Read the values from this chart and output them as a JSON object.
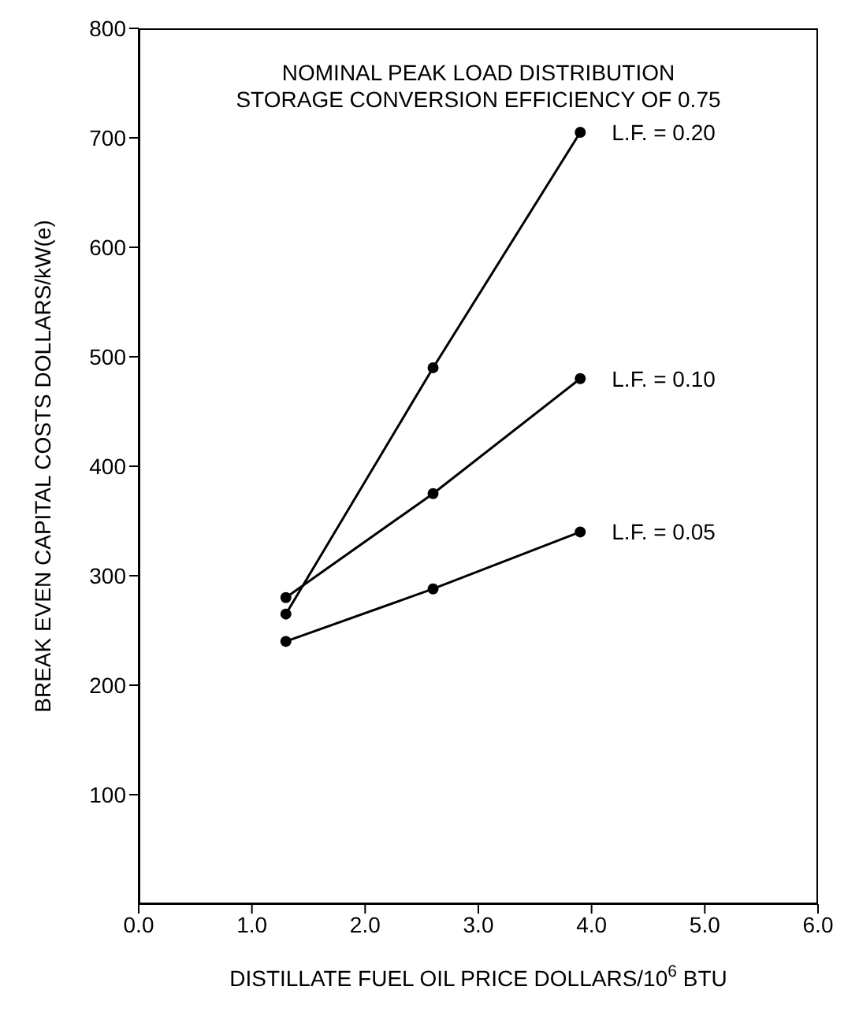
{
  "chart_data": {
    "type": "line",
    "title": "NOMINAL PEAK LOAD DISTRIBUTION",
    "subtitle": "STORAGE CONVERSION EFFICIENCY OF 0.75",
    "xlabel": "DISTILLATE FUEL OIL PRICE DOLLARS/10$^{6}$ BTU",
    "ylabel": "BREAK EVEN CAPITAL COSTS DOLLARS/kW(e)",
    "x": [
      1.3,
      2.6,
      3.9
    ],
    "series": [
      {
        "name": "L.F. = 0.20",
        "color": "#000000",
        "values": [
          265,
          490,
          705
        ]
      },
      {
        "name": "L.F. = 0.10",
        "color": "#000000",
        "values": [
          280,
          375,
          480
        ]
      },
      {
        "name": "L.F. = 0.05",
        "color": "#000000",
        "values": [
          240,
          288,
          340
        ]
      }
    ],
    "xlim": [
      0,
      6
    ],
    "xticks": [
      {
        "value": 0,
        "label": "0.0"
      },
      {
        "value": 1,
        "label": "1.0"
      },
      {
        "value": 2,
        "label": "2.0"
      },
      {
        "value": 3,
        "label": "3.0"
      },
      {
        "value": 4,
        "label": "4.0"
      },
      {
        "value": 5,
        "label": "5.0"
      },
      {
        "value": 6,
        "label": "6.0"
      }
    ],
    "ylim": [
      0,
      800
    ],
    "yticks": [
      100,
      200,
      300,
      400,
      500,
      600,
      700,
      800
    ],
    "grid": false,
    "legend": false,
    "marker": "circle",
    "line_style": "solid"
  }
}
